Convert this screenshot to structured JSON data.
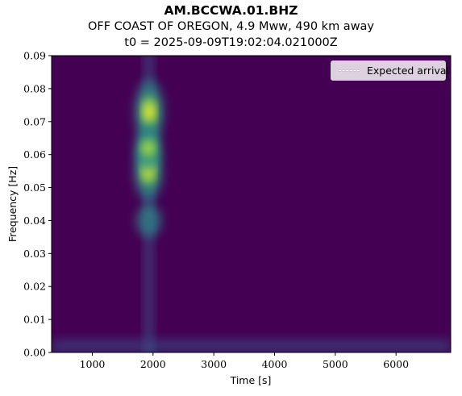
{
  "titles": {
    "station": "AM.BCCWA.01.BHZ",
    "event": "OFF COAST OF OREGON, 4.9 Mww, 490 km away",
    "origin": "t0 = 2025-09-09T19:02:04.021000Z"
  },
  "chart_data": {
    "type": "heatmap",
    "xlabel": "Time [s]",
    "ylabel": "Frequency [Hz]",
    "xlim": [
      330,
      6900
    ],
    "ylim": [
      0.0,
      0.09
    ],
    "x_ticks": [
      1000,
      2000,
      3000,
      4000,
      5000,
      6000
    ],
    "x_tick_labels": [
      "1000",
      "2000",
      "3000",
      "4000",
      "5000",
      "6000"
    ],
    "y_ticks": [
      0.0,
      0.01,
      0.02,
      0.03,
      0.04,
      0.05,
      0.06,
      0.07,
      0.08,
      0.09
    ],
    "y_tick_labels": [
      "0.00",
      "0.01",
      "0.02",
      "0.03",
      "0.04",
      "0.05",
      "0.06",
      "0.07",
      "0.08",
      "0.09"
    ],
    "colormap": "viridis",
    "grid": false,
    "legend": {
      "position": "top-right",
      "entries": [
        "Expected arrival"
      ],
      "line_style": "dashed",
      "line_color": "#ffffff"
    },
    "energy_band": {
      "time_center": 1930,
      "time_width": 140
    },
    "hotspots": [
      {
        "time": 1935,
        "frequency": 0.073,
        "intensity": 1.0
      },
      {
        "time": 1920,
        "frequency": 0.055,
        "intensity": 0.9
      },
      {
        "time": 1920,
        "frequency": 0.062,
        "intensity": 0.6
      },
      {
        "time": 1930,
        "frequency": 0.04,
        "intensity": 0.35
      }
    ],
    "background_color": "#440154"
  }
}
